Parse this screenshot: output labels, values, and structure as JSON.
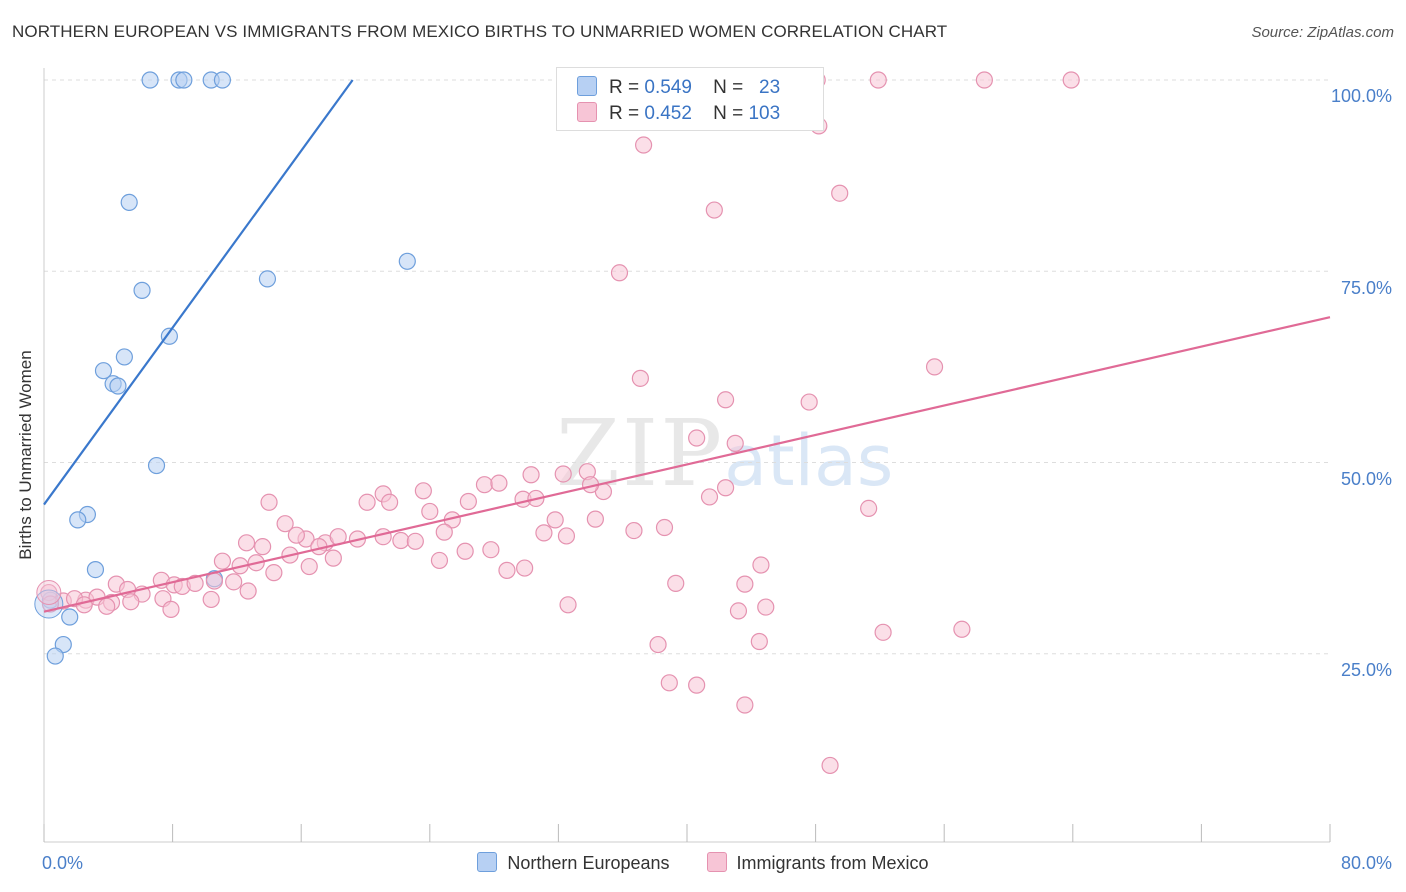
{
  "title": "NORTHERN EUROPEAN VS IMMIGRANTS FROM MEXICO BIRTHS TO UNMARRIED WOMEN CORRELATION CHART",
  "source": "Source: ZipAtlas.com",
  "watermark": {
    "zip": "ZIP",
    "atlas": "atlas"
  },
  "legend_top": [
    {
      "r_label": "R =",
      "r": "0.549",
      "n_label": "N =",
      "n": "23"
    },
    {
      "r_label": "R =",
      "r": "0.452",
      "n_label": "N =",
      "n": "103"
    }
  ],
  "colors": {
    "blue_fill": "#b7d0f3",
    "blue_stroke": "#6e9fdc",
    "blue_line": "#3a78cc",
    "pink_fill": "#f7c5d6",
    "pink_stroke": "#e592b0",
    "pink_line": "#e06a96",
    "tick_text": "#4a7fc9",
    "grid": "#dddddd"
  },
  "chart_data": {
    "type": "scatter",
    "title": "NORTHERN EUROPEAN VS IMMIGRANTS FROM MEXICO BIRTHS TO UNMARRIED WOMEN CORRELATION CHART",
    "xlabel": "",
    "ylabel": "Births to Unmarried Women",
    "xlim": [
      0,
      80
    ],
    "ylim": [
      0,
      101
    ],
    "x_tick_labels": [
      "0.0%",
      "80.0%"
    ],
    "y_tick_labels": [
      "100.0%",
      "75.0%",
      "50.0%",
      "25.0%"
    ],
    "y_ticks": [
      100,
      75,
      50,
      25
    ],
    "grid": true,
    "legend": "bottom",
    "series": [
      {
        "name": "Northern Europeans",
        "color": "#6e9fdc",
        "points": [
          [
            6.6,
            100
          ],
          [
            8.4,
            100
          ],
          [
            8.7,
            100
          ],
          [
            10.4,
            100
          ],
          [
            5.3,
            84
          ],
          [
            13.9,
            74
          ],
          [
            22.6,
            76.3
          ],
          [
            6.1,
            72.5
          ],
          [
            7.8,
            66.5
          ],
          [
            5,
            63.8
          ],
          [
            3.7,
            62
          ],
          [
            4.3,
            60.3
          ],
          [
            4.6,
            60
          ],
          [
            7,
            49.6
          ],
          [
            2.7,
            43.2
          ],
          [
            2.1,
            42.5
          ],
          [
            3.2,
            36
          ],
          [
            10.6,
            34.8
          ],
          [
            0.4,
            32
          ],
          [
            1.6,
            29.8
          ],
          [
            1.2,
            26.2
          ],
          [
            0.7,
            24.7
          ],
          [
            11.1,
            100
          ]
        ],
        "trend": [
          [
            0,
            44.5
          ],
          [
            19.2,
            100
          ]
        ]
      },
      {
        "name": "Immigrants from Mexico",
        "color": "#e592b0",
        "points": [
          [
            48.1,
            100
          ],
          [
            51.9,
            100
          ],
          [
            58.5,
            100
          ],
          [
            63.9,
            100
          ],
          [
            37.3,
            91.5
          ],
          [
            49.5,
            85.2
          ],
          [
            41.7,
            83
          ],
          [
            35.8,
            74.8
          ],
          [
            55.4,
            62.5
          ],
          [
            37.1,
            61
          ],
          [
            42.4,
            58.2
          ],
          [
            47.6,
            57.9
          ],
          [
            40.6,
            53.2
          ],
          [
            43,
            52.5
          ],
          [
            32.3,
            48.5
          ],
          [
            33.8,
            48.8
          ],
          [
            30.3,
            48.4
          ],
          [
            27.4,
            47.1
          ],
          [
            28.3,
            47.3
          ],
          [
            34.8,
            46.2
          ],
          [
            34,
            47.1
          ],
          [
            41.4,
            45.5
          ],
          [
            42.4,
            46.7
          ],
          [
            14,
            44.8
          ],
          [
            20.1,
            44.8
          ],
          [
            21.1,
            45.9
          ],
          [
            23.6,
            46.3
          ],
          [
            26.4,
            44.9
          ],
          [
            29.8,
            45.2
          ],
          [
            30.6,
            45.3
          ],
          [
            51.3,
            44
          ],
          [
            21.5,
            44.8
          ],
          [
            24,
            43.6
          ],
          [
            25.4,
            42.5
          ],
          [
            31.8,
            42.5
          ],
          [
            34.3,
            42.6
          ],
          [
            15,
            42
          ],
          [
            16.3,
            40
          ],
          [
            15.7,
            40.5
          ],
          [
            17.5,
            39.5
          ],
          [
            18.3,
            40.3
          ],
          [
            19.5,
            40
          ],
          [
            31.1,
            40.8
          ],
          [
            32.5,
            40.4
          ],
          [
            36.7,
            41.1
          ],
          [
            38.6,
            41.5
          ],
          [
            21.1,
            40.3
          ],
          [
            22.2,
            39.8
          ],
          [
            12.6,
            39.5
          ],
          [
            13.6,
            39
          ],
          [
            24.9,
            40.9
          ],
          [
            23.1,
            39.7
          ],
          [
            17.1,
            39
          ],
          [
            15.3,
            37.9
          ],
          [
            11.1,
            37.1
          ],
          [
            12.2,
            36.5
          ],
          [
            16.5,
            36.4
          ],
          [
            18,
            37.5
          ],
          [
            26.2,
            38.4
          ],
          [
            27.8,
            38.6
          ],
          [
            24.6,
            37.2
          ],
          [
            28.8,
            35.9
          ],
          [
            29.9,
            36.2
          ],
          [
            10.6,
            34.5
          ],
          [
            11.8,
            34.4
          ],
          [
            12.7,
            33.2
          ],
          [
            7.3,
            34.6
          ],
          [
            8.1,
            34
          ],
          [
            6.1,
            32.8
          ],
          [
            4.5,
            34.1
          ],
          [
            5.2,
            33.4
          ],
          [
            2.6,
            32
          ],
          [
            3.3,
            32.4
          ],
          [
            1.2,
            31.9
          ],
          [
            1.9,
            32.2
          ],
          [
            0.3,
            33
          ],
          [
            4.2,
            31.7
          ],
          [
            5.4,
            31.8
          ],
          [
            7.4,
            32.2
          ],
          [
            8.6,
            33.8
          ],
          [
            9.4,
            34.2
          ],
          [
            2.5,
            31.4
          ],
          [
            3.9,
            31.2
          ],
          [
            7.9,
            30.8
          ],
          [
            32.6,
            31.4
          ],
          [
            39.3,
            34.2
          ],
          [
            43.6,
            34.1
          ],
          [
            44.6,
            36.6
          ],
          [
            43.2,
            30.6
          ],
          [
            44.9,
            31.1
          ],
          [
            52.2,
            27.8
          ],
          [
            57.1,
            28.2
          ],
          [
            38.2,
            26.2
          ],
          [
            44.5,
            26.6
          ],
          [
            38.9,
            21.2
          ],
          [
            40.6,
            20.9
          ],
          [
            43.6,
            18.3
          ],
          [
            48.9,
            10.4
          ],
          [
            48.2,
            94
          ],
          [
            0.4,
            31.5
          ],
          [
            10.4,
            32.1
          ],
          [
            13.2,
            36.9
          ],
          [
            14.3,
            35.6
          ]
        ],
        "trend": [
          [
            0,
            30.5
          ],
          [
            80,
            69
          ]
        ]
      }
    ]
  },
  "legend_bottom": [
    {
      "label": "Northern Europeans"
    },
    {
      "label": "Immigrants from Mexico"
    }
  ]
}
